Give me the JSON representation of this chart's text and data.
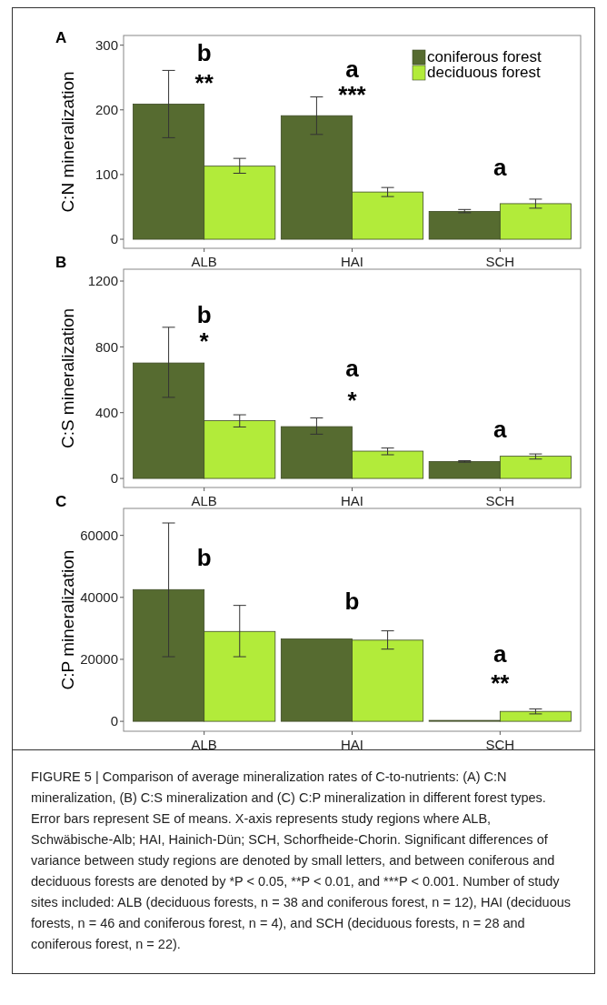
{
  "chart_data": [
    {
      "type": "bar",
      "title": "A",
      "ylabel": "C:N mineralization",
      "categories": [
        "ALB",
        "HAI",
        "SCH"
      ],
      "ylim": [
        -14,
        315
      ],
      "yticks": [
        0,
        100,
        200,
        300
      ],
      "grid": false,
      "legend": "top right",
      "series": [
        {
          "name": "coniferous forest",
          "color": "#566b30",
          "values": [
            209,
            191,
            43
          ],
          "errors": [
            [
              157,
              261
            ],
            [
              162,
              220
            ],
            [
              41,
              46
            ]
          ]
        },
        {
          "name": "deciduous forest",
          "color": "#b2eb3a",
          "values": [
            113,
            73,
            55
          ],
          "errors": [
            [
              102,
              125
            ],
            [
              66,
              80
            ],
            [
              48,
              62
            ]
          ]
        }
      ],
      "annotations": [
        "b",
        "**",
        "a",
        "***",
        "a"
      ]
    },
    {
      "type": "bar",
      "title": "B",
      "ylabel": "C:S mineralization",
      "categories": [
        "ALB",
        "HAI",
        "SCH"
      ],
      "ylim": [
        -55,
        1272
      ],
      "yticks": [
        0,
        400,
        800,
        1200
      ],
      "grid": false,
      "legend": false,
      "series": [
        {
          "color": "#566b30",
          "values": [
            702,
            315,
            103
          ],
          "errors": [
            [
              493,
              919
            ],
            [
              269,
              368
            ],
            [
              99,
              108
            ]
          ]
        },
        {
          "color": "#b2eb3a",
          "values": [
            351,
            166,
            135
          ],
          "errors": [
            [
              313,
              387
            ],
            [
              144,
              185
            ],
            [
              118,
              149
            ]
          ]
        }
      ],
      "annotations": [
        "b",
        "*",
        "a",
        "*",
        "a"
      ]
    },
    {
      "type": "bar",
      "title": "C",
      "ylabel": "C:P mineralization",
      "categories": [
        "ALB",
        "HAI",
        "SCH"
      ],
      "ylim": [
        -3200,
        68700
      ],
      "yticks": [
        0,
        20000,
        40000,
        60000
      ],
      "grid": false,
      "legend": false,
      "series": [
        {
          "color": "#566b30",
          "values": [
            42500,
            26600,
            300
          ],
          "errors": [
            [
              20850,
              64000
            ],
            null,
            null
          ]
        },
        {
          "color": "#b2eb3a",
          "values": [
            29000,
            26200,
            3200
          ],
          "errors": [
            [
              20850,
              37400
            ],
            [
              23300,
              29200
            ],
            [
              2400,
              4000
            ]
          ]
        }
      ],
      "annotations": [
        "b",
        "b",
        "a",
        "**",
        "FIGURE 5 | Comparison of average mineralization rates of C-to-nutrients: (A) C:N mineralization, (B) C:S mineralization and (C) C:P mineralization in different forest types. Error bars represent SE of means. X-axis represents study regions where ALB, Schwäbische-Alb; HAI, Hainich-Dün; SCH, Schorfheide-Chorin. Significant differences of variance between study regions are denoted by small letters, and between coniferous and deciduous forests are denoted by *P < 0.05, **P < 0.01, and ***P < 0.001. Number of study sites included: ALB (deciduous forests, n = 38 and coniferous forest, n = 12), HAI (deciduous forests, n = 46 and coniferous forest, n = 4), and SCH (deciduous forests, n = 28 and coniferous forest, n = 22)."
      ]
    }
  ]
}
